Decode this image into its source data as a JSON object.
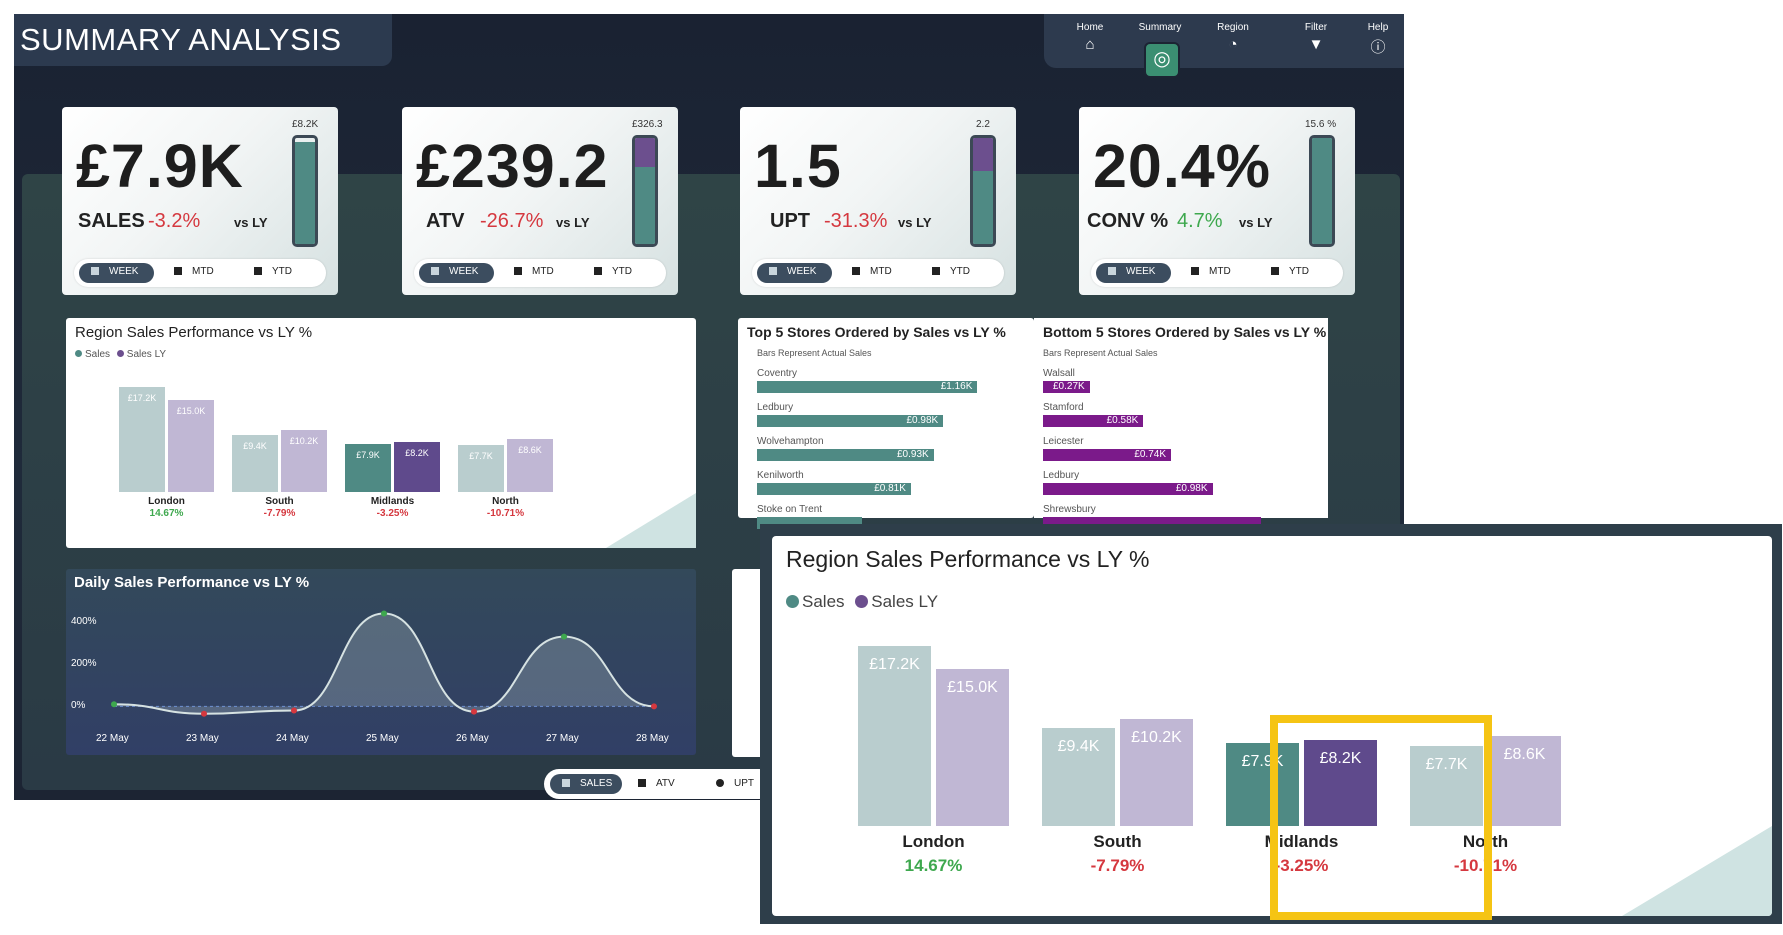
{
  "page": {
    "title": "SUMMARY ANALYSIS"
  },
  "nav": {
    "items": [
      {
        "label": "Home",
        "icon": "home-icon",
        "glyph": "⌂"
      },
      {
        "label": "Summary",
        "icon": "target-icon",
        "glyph": "◎"
      },
      {
        "label": "Region",
        "icon": "pie-icon",
        "glyph": "◔"
      },
      {
        "label": "Filter",
        "icon": "filter-icon",
        "glyph": "▼"
      },
      {
        "label": "Help",
        "icon": "info-icon",
        "glyph": "ⓘ"
      }
    ]
  },
  "kpis": [
    {
      "value": "£7.9K",
      "label": "SALES",
      "delta": "-3.2%",
      "delta_sign": "neg",
      "vs": "vs LY",
      "max": "£8.2K",
      "fill": 0.96,
      "over": 0.0
    },
    {
      "value": "£239.2",
      "label": "ATV",
      "delta": "-26.7%",
      "delta_sign": "neg",
      "vs": "vs LY",
      "max": "£326.3",
      "fill": 0.73,
      "over": 0.27
    },
    {
      "value": "1.5",
      "label": "UPT",
      "delta": "-31.3%",
      "delta_sign": "neg",
      "vs": "vs LY",
      "max": "2.2",
      "fill": 0.69,
      "over": 0.31
    },
    {
      "value": "20.4%",
      "label": "CONV %",
      "delta": "4.7%",
      "delta_sign": "pos",
      "vs": "vs LY",
      "max": "15.6 %",
      "fill": 1.0,
      "over": 0.0
    }
  ],
  "kpi_toggle": {
    "week": "WEEK",
    "mtd": "MTD",
    "ytd": "YTD"
  },
  "region_chart": {
    "title": "Region Sales Performance vs LY %",
    "legend_sales": "Sales",
    "legend_ly": "Sales LY"
  },
  "top_stores": {
    "title": "Top 5 Stores Ordered by Sales vs LY %",
    "subtitle": "Bars Represent Actual Sales",
    "items": [
      {
        "name": "Coventry",
        "value": "£1.16K",
        "amount": 1.16
      },
      {
        "name": "Ledbury",
        "value": "£0.98K",
        "amount": 0.98
      },
      {
        "name": "Wolvehampton",
        "value": "£0.93K",
        "amount": 0.93
      },
      {
        "name": "Kenilworth",
        "value": "£0.81K",
        "amount": 0.81
      },
      {
        "name": "Stoke on Trent",
        "value": "",
        "amount": 0.55
      }
    ]
  },
  "bottom_stores": {
    "title": "Bottom 5 Stores Ordered by Sales vs LY %",
    "subtitle": "Bars Represent Actual Sales",
    "items": [
      {
        "name": "Walsall",
        "value": "£0.27K",
        "amount": 0.27
      },
      {
        "name": "Stamford",
        "value": "£0.58K",
        "amount": 0.58
      },
      {
        "name": "Leicester",
        "value": "£0.74K",
        "amount": 0.74
      },
      {
        "name": "Ledbury",
        "value": "£0.98K",
        "amount": 0.98
      },
      {
        "name": "Shrewsbury",
        "value": "",
        "amount": 1.26
      }
    ]
  },
  "daily_chart": {
    "title": "Daily Sales Performance vs LY %"
  },
  "bottom_toggle": {
    "sales": "SALES",
    "atv": "ATV",
    "upt": "UPT"
  },
  "colors": {
    "sales_dim": "#b9cdce",
    "sales_hi": "#4f8a84",
    "ly_dim": "#c0b7d4",
    "ly_hi": "#5f4a8c",
    "neg": "#d5383f",
    "pos": "#3ea84e",
    "highlight": "#f5c414"
  },
  "chart_data": [
    {
      "type": "bar",
      "title": "Region Sales Performance vs LY %",
      "categories": [
        "London",
        "South",
        "Midlands",
        "North"
      ],
      "series": [
        {
          "name": "Sales",
          "values": [
            17.2,
            9.4,
            7.9,
            7.7
          ],
          "labels": [
            "£17.2K",
            "£9.4K",
            "£7.9K",
            "£7.7K"
          ]
        },
        {
          "name": "Sales LY",
          "values": [
            15.0,
            10.2,
            8.2,
            8.6
          ],
          "labels": [
            "£15.0K",
            "£10.2K",
            "£8.2K",
            "£8.6K"
          ]
        }
      ],
      "change_vs_ly": [
        "14.67%",
        "-7.79%",
        "-3.25%",
        "-10.71%"
      ],
      "change_sign": [
        "pos",
        "neg",
        "neg",
        "neg"
      ],
      "highlighted_category": "Midlands",
      "ylim": [
        0,
        18
      ]
    },
    {
      "type": "line",
      "title": "Daily Sales Performance vs LY %",
      "x": [
        "22 May",
        "23 May",
        "24 May",
        "25 May",
        "26 May",
        "27 May",
        "28 May"
      ],
      "values": [
        10,
        -35,
        -20,
        440,
        -25,
        330,
        0
      ],
      "y_ticks": [
        "400%",
        "200%",
        "0%"
      ],
      "ylim": [
        -60,
        480
      ]
    }
  ]
}
